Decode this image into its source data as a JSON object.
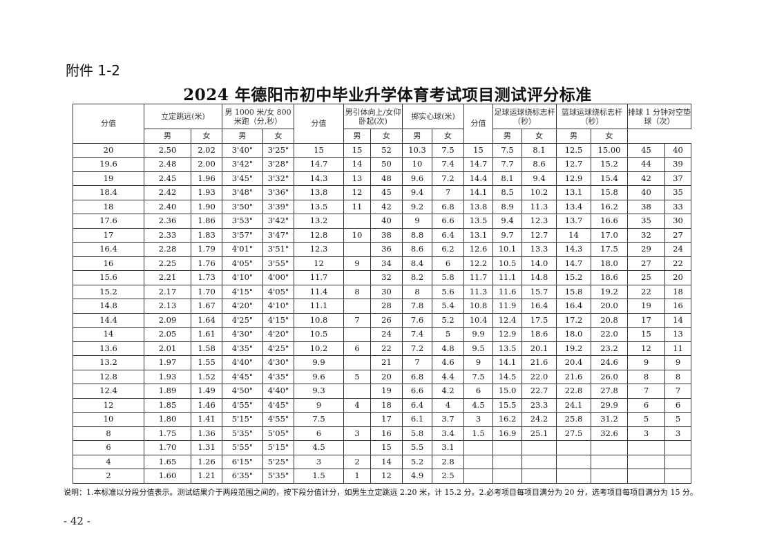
{
  "attachment_label": "附件 1-2",
  "title": "2024 年德阳市初中毕业升学体育考试项目测试评分标准",
  "table": {
    "headers": {
      "score": "分值",
      "standing_jump": "立定跳远(米)",
      "run": "男 1000 米/女 800 米跑（分,秒）",
      "score2": "分值",
      "pullup_situp": "男引体向上/女仰卧起(次)",
      "medicine_ball": "掷实心球(米)",
      "score3": "分值",
      "football": "足球运球绕标志杆（秒）",
      "basketball": "篮球运球绕标志杆（秒）",
      "volleyball": "排球 1 分钟对空垫球（次）",
      "male": "男",
      "female": "女"
    },
    "rows": [
      [
        "20",
        "2.50",
        "2.02",
        "3'40\"",
        "3'25\"",
        "15",
        "15",
        "52",
        "10.3",
        "7.5",
        "15",
        "7.5",
        "8.1",
        "12.5",
        "15.00",
        "45",
        "40"
      ],
      [
        "19.6",
        "2.48",
        "2.00",
        "3'42\"",
        "3'28\"",
        "14.7",
        "14",
        "50",
        "10",
        "7.4",
        "14.7",
        "7.7",
        "8.6",
        "12.7",
        "15.2",
        "44",
        "39"
      ],
      [
        "19",
        "2.45",
        "1.96",
        "3'45\"",
        "3'32\"",
        "14.3",
        "13",
        "48",
        "9.6",
        "7.2",
        "14.4",
        "8.1",
        "9.4",
        "12.9",
        "15.4",
        "42",
        "37"
      ],
      [
        "18.4",
        "2.42",
        "1.93",
        "3'48\"",
        "3'36\"",
        "13.8",
        "12",
        "45",
        "9.4",
        "7",
        "14.1",
        "8.5",
        "10.2",
        "13.1",
        "15.8",
        "40",
        "35"
      ],
      [
        "18",
        "2.40",
        "1.90",
        "3'50\"",
        "3'39\"",
        "13.5",
        "11",
        "42",
        "9.2",
        "6.8",
        "13.8",
        "8.9",
        "11.3",
        "13.4",
        "16.2",
        "38",
        "33"
      ],
      [
        "17.6",
        "2.36",
        "1.86",
        "3'53\"",
        "3'42\"",
        "13.2",
        "",
        "40",
        "9",
        "6.6",
        "13.5",
        "9.4",
        "12.3",
        "13.7",
        "16.6",
        "35",
        "30"
      ],
      [
        "17",
        "2.33",
        "1.83",
        "3'57\"",
        "3'47\"",
        "12.8",
        "10",
        "38",
        "8.8",
        "6.4",
        "13.1",
        "9.7",
        "12.7",
        "14",
        "17.0",
        "32",
        "27"
      ],
      [
        "16.4",
        "2.28",
        "1.79",
        "4'01\"",
        "3'51\"",
        "12.3",
        "",
        "36",
        "8.6",
        "6.2",
        "12.6",
        "10.1",
        "13.3",
        "14.3",
        "17.5",
        "29",
        "24"
      ],
      [
        "16",
        "2.25",
        "1.76",
        "4'05\"",
        "3'55\"",
        "12",
        "9",
        "34",
        "8.4",
        "6",
        "12.2",
        "10.5",
        "14.0",
        "14.7",
        "18.0",
        "27",
        "22"
      ],
      [
        "15.6",
        "2.21",
        "1.73",
        "4'10\"",
        "4'00\"",
        "11.7",
        "",
        "32",
        "8.2",
        "5.8",
        "11.7",
        "11.1",
        "14.8",
        "15.2",
        "18.6",
        "25",
        "20"
      ],
      [
        "15.2",
        "2.17",
        "1.70",
        "4'15\"",
        "4'05\"",
        "11.4",
        "8",
        "30",
        "8",
        "5.6",
        "11.3",
        "11.6",
        "15.7",
        "15.8",
        "19.2",
        "22",
        "18"
      ],
      [
        "14.8",
        "2.13",
        "1.67",
        "4'20\"",
        "4'10\"",
        "11.1",
        "",
        "28",
        "7.8",
        "5.4",
        "10.8",
        "11.9",
        "16.4",
        "16.4",
        "20.0",
        "19",
        "16"
      ],
      [
        "14.4",
        "2.09",
        "1.64",
        "4'25\"",
        "4'15\"",
        "10.8",
        "7",
        "26",
        "7.6",
        "5.2",
        "10.4",
        "12.4",
        "17.5",
        "17.2",
        "20.8",
        "17",
        "14"
      ],
      [
        "14",
        "2.05",
        "1.61",
        "4'30\"",
        "4'20\"",
        "10.5",
        "",
        "24",
        "7.4",
        "5",
        "9.9",
        "12.9",
        "18.6",
        "18.0",
        "22.0",
        "15",
        "13"
      ],
      [
        "13.6",
        "2.01",
        "1.58",
        "4'35\"",
        "4'25\"",
        "10.2",
        "6",
        "22",
        "7.2",
        "4.8",
        "9.5",
        "13.5",
        "20.1",
        "19.2",
        "23.2",
        "12",
        "11"
      ],
      [
        "13.2",
        "1.97",
        "1.55",
        "4'40\"",
        "4'30\"",
        "9.9",
        "",
        "21",
        "7",
        "4.6",
        "9",
        "14.1",
        "21.6",
        "20.4",
        "24.6",
        "9",
        "9"
      ],
      [
        "12.8",
        "1.93",
        "1.52",
        "4'45\"",
        "4'35\"",
        "9.6",
        "5",
        "20",
        "6.8",
        "4.4",
        "7.5",
        "14.5",
        "22.0",
        "21.6",
        "26.0",
        "8",
        "8"
      ],
      [
        "12.4",
        "1.89",
        "1.49",
        "4'50\"",
        "4'40\"",
        "9.3",
        "",
        "19",
        "6.6",
        "4.2",
        "6",
        "15.0",
        "22.7",
        "22.8",
        "27.8",
        "7",
        "7"
      ],
      [
        "12",
        "1.85",
        "1.46",
        "4'55\"",
        "4'45\"",
        "9",
        "4",
        "18",
        "6.4",
        "4",
        "4.5",
        "15.5",
        "23.3",
        "24.1",
        "29.9",
        "6",
        "6"
      ],
      [
        "10",
        "1.80",
        "1.41",
        "5'15\"",
        "4'55\"",
        "7.5",
        "",
        "17",
        "6.1",
        "3.7",
        "3",
        "16.2",
        "24.2",
        "25.8",
        "31.2",
        "5",
        "5"
      ],
      [
        "8",
        "1.75",
        "1.36",
        "5'35\"",
        "5'05\"",
        "6",
        "3",
        "16",
        "5.8",
        "3.4",
        "1.5",
        "16.9",
        "25.1",
        "27.5",
        "32.6",
        "3",
        "3"
      ],
      [
        "6",
        "1.70",
        "1.31",
        "5'55\"",
        "5'15\"",
        "4.5",
        "",
        "15",
        "5.5",
        "3.1",
        "",
        "",
        "",
        "",
        "",
        "",
        ""
      ],
      [
        "4",
        "1.65",
        "1.26",
        "6'15\"",
        "5'25\"",
        "3",
        "2",
        "14",
        "5.2",
        "2.8",
        "",
        "",
        "",
        "",
        "",
        "",
        ""
      ],
      [
        "2",
        "1.60",
        "1.21",
        "6'35\"",
        "5'35\"",
        "1.5",
        "1",
        "12",
        "4.9",
        "2.5",
        "",
        "",
        "",
        "",
        "",
        "",
        ""
      ]
    ]
  },
  "note": "说明：1.本标准以分段分值表示。测试结果介于两段范围之间的，按下段分值计分，如男生立定跳远 2.20 米，计 15.2 分。2.必考项目每项目满分为 20 分，选考项目每项目满分为 15 分。",
  "page_number": "- 42 -"
}
